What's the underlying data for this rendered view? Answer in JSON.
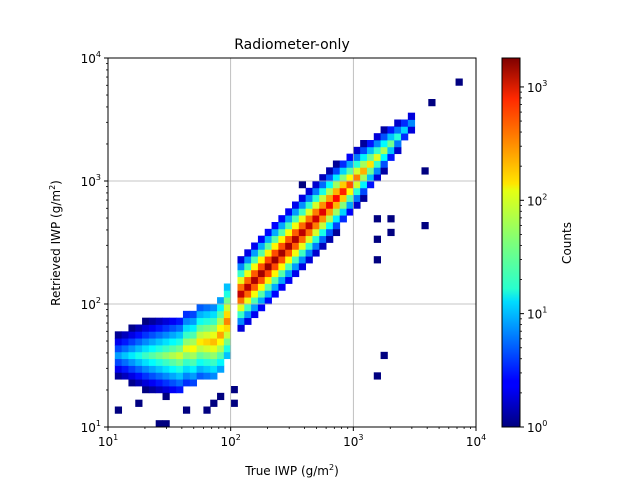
{
  "chart_data": {
    "type": "heatmap",
    "title": "Radiometer-only",
    "xlabel": "True IWP (g/m",
    "xlabel_sup": "2",
    "xlabel_end": ")",
    "ylabel": "Retrieved IWP (g/m",
    "ylabel_sup": "2",
    "ylabel_end": ")",
    "xscale": "log",
    "yscale": "log",
    "xlim": [
      10,
      10000
    ],
    "ylim": [
      10,
      10000
    ],
    "grid": true,
    "x_ticks": [
      {
        "base": "10",
        "exp": "1"
      },
      {
        "base": "10",
        "exp": "2"
      },
      {
        "base": "10",
        "exp": "3"
      },
      {
        "base": "10",
        "exp": "4"
      }
    ],
    "y_ticks": [
      {
        "base": "10",
        "exp": "1"
      },
      {
        "base": "10",
        "exp": "2"
      },
      {
        "base": "10",
        "exp": "3"
      },
      {
        "base": "10",
        "exp": "4"
      }
    ],
    "colorbar": {
      "label": "Counts",
      "scale": "log",
      "range": [
        1,
        1800
      ],
      "colormap": "jet",
      "ticks": [
        {
          "base": "10",
          "exp": "0"
        },
        {
          "base": "10",
          "exp": "1"
        },
        {
          "base": "10",
          "exp": "2"
        },
        {
          "base": "10",
          "exp": "3"
        }
      ]
    },
    "bin_edges_per_decade": 18,
    "diagonal": [
      {
        "x": 120,
        "y": 120,
        "count": 1100
      },
      {
        "x": 200,
        "y": 200,
        "count": 1500
      },
      {
        "x": 320,
        "y": 320,
        "count": 1300
      },
      {
        "x": 500,
        "y": 500,
        "count": 1000
      },
      {
        "x": 800,
        "y": 800,
        "count": 600
      },
      {
        "x": 1200,
        "y": 1200,
        "count": 200
      },
      {
        "x": 2000,
        "y": 2000,
        "count": 40
      },
      {
        "x": 3200,
        "y": 3200,
        "count": 5
      }
    ],
    "cloud": [
      {
        "x": 12,
        "y": 38,
        "count": 8
      },
      {
        "x": 20,
        "y": 38,
        "count": 25
      },
      {
        "x": 40,
        "y": 40,
        "count": 80
      },
      {
        "x": 80,
        "y": 55,
        "count": 200
      },
      {
        "x": 100,
        "y": 80,
        "count": 300
      }
    ],
    "outliers": [
      {
        "x": 7000,
        "y": 6200,
        "count": 1
      },
      {
        "x": 4500,
        "y": 4500,
        "count": 1
      },
      {
        "x": 3600,
        "y": 1200,
        "count": 1
      },
      {
        "x": 1700,
        "y": 1200,
        "count": 1
      },
      {
        "x": 1200,
        "y": 700,
        "count": 1
      },
      {
        "x": 600,
        "y": 850,
        "count": 1
      },
      {
        "x": 1500,
        "y": 500,
        "count": 1
      },
      {
        "x": 2000,
        "y": 500,
        "count": 1
      },
      {
        "x": 1500,
        "y": 320,
        "count": 1
      },
      {
        "x": 1500,
        "y": 240,
        "count": 1
      },
      {
        "x": 2100,
        "y": 380,
        "count": 1
      },
      {
        "x": 3600,
        "y": 420,
        "count": 1
      },
      {
        "x": 1800,
        "y": 38,
        "count": 1
      },
      {
        "x": 1500,
        "y": 25,
        "count": 1
      },
      {
        "x": 400,
        "y": 900,
        "count": 1
      },
      {
        "x": 12,
        "y": 13,
        "count": 1
      },
      {
        "x": 18,
        "y": 15,
        "count": 1
      },
      {
        "x": 25,
        "y": 11,
        "count": 1
      },
      {
        "x": 28,
        "y": 11,
        "count": 1
      },
      {
        "x": 45,
        "y": 13,
        "count": 1
      },
      {
        "x": 60,
        "y": 13,
        "count": 1
      },
      {
        "x": 70,
        "y": 15,
        "count": 1
      },
      {
        "x": 80,
        "y": 17,
        "count": 1
      },
      {
        "x": 100,
        "y": 15,
        "count": 1
      },
      {
        "x": 30,
        "y": 17,
        "count": 1
      },
      {
        "x": 110,
        "y": 20,
        "count": 1
      }
    ]
  }
}
